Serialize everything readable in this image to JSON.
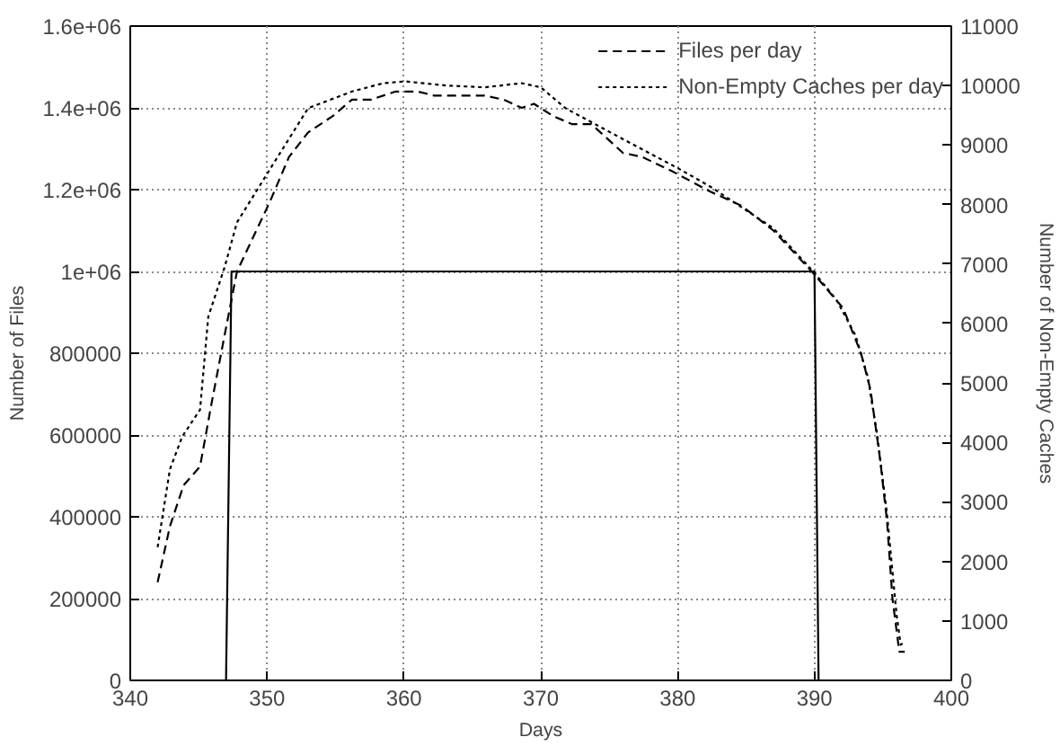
{
  "chart_data": {
    "type": "line",
    "xlabel": "Days",
    "ylabel": "Number of Files",
    "y2label": "Number of Non-Empty Caches",
    "xlim": [
      340,
      400
    ],
    "xticks": [
      340,
      350,
      360,
      370,
      380,
      390,
      400
    ],
    "ylim": [
      0,
      1600000
    ],
    "yticks": [
      0,
      200000,
      400000,
      600000,
      800000,
      {
        "value": 1000000,
        "label": "1e+06"
      },
      {
        "value": 1200000,
        "label": "1.2e+06"
      },
      {
        "value": 1400000,
        "label": "1.4e+06"
      },
      {
        "value": 1600000,
        "label": "1.6e+06"
      }
    ],
    "y2lim": [
      0,
      11000
    ],
    "y2ticks": [
      0,
      1000,
      2000,
      3000,
      4000,
      5000,
      6000,
      7000,
      8000,
      9000,
      10000,
      11000
    ],
    "grid": true,
    "legend": "top right",
    "series": [
      {
        "name": "Files per day",
        "color": "#000000",
        "line_style": "dashed",
        "x": [
          342,
          342.9,
          343.9,
          345.1,
          345.9,
          346.9,
          347.8,
          350.2,
          351.6,
          353,
          354.8,
          356.2,
          357.6,
          359.4,
          361,
          362.2,
          364,
          365.9,
          367.3,
          368.6,
          369.5,
          370.9,
          372.3,
          373.7,
          376,
          377.4,
          379.6,
          382.4,
          384.7,
          387,
          389.8,
          392.1,
          393.4,
          394.1,
          394.8,
          395.3,
          395.7,
          396.2,
          396.6
        ],
        "values": [
          240000,
          377000,
          477000,
          523000,
          670000,
          845000,
          1000000,
          1170000,
          1280000,
          1340000,
          1380000,
          1420000,
          1420000,
          1440000,
          1440000,
          1430000,
          1430000,
          1430000,
          1420000,
          1400000,
          1410000,
          1380000,
          1360000,
          1360000,
          1290000,
          1280000,
          1245000,
          1195000,
          1160000,
          1100000,
          1000000,
          910000,
          800000,
          710000,
          540000,
          390000,
          200000,
          70000,
          70000
        ]
      },
      {
        "name": "Non-Empty Caches per day",
        "color": "#000000",
        "line_style": "dotted",
        "axis": "y2",
        "x": [
          342,
          342.9,
          343.8,
          345.1,
          345.7,
          346.9,
          347.8,
          350.2,
          353,
          356.2,
          358.5,
          360.1,
          363.1,
          365.9,
          368.6,
          370,
          371.8,
          376,
          380.1,
          382.4,
          384.7,
          387,
          390,
          391.6,
          393,
          393.9,
          394.6,
          395.3,
          396,
          396.3,
          396.6
        ],
        "values": [
          2240,
          3550,
          4100,
          4550,
          6110,
          6950,
          7700,
          8590,
          9620,
          9900,
          10040,
          10070,
          10000,
          9970,
          10040,
          9970,
          9620,
          9100,
          8600,
          8300,
          7950,
          7600,
          6850,
          6400,
          5800,
          5100,
          4100,
          2800,
          1100,
          600,
          640
        ]
      },
      {
        "color": "#000000",
        "line_style": "solid",
        "x": [
          342,
          347,
          347.4,
          390,
          390.3,
          397
        ],
        "values": [
          0,
          0,
          1000000,
          1000000,
          0,
          0
        ]
      }
    ]
  }
}
